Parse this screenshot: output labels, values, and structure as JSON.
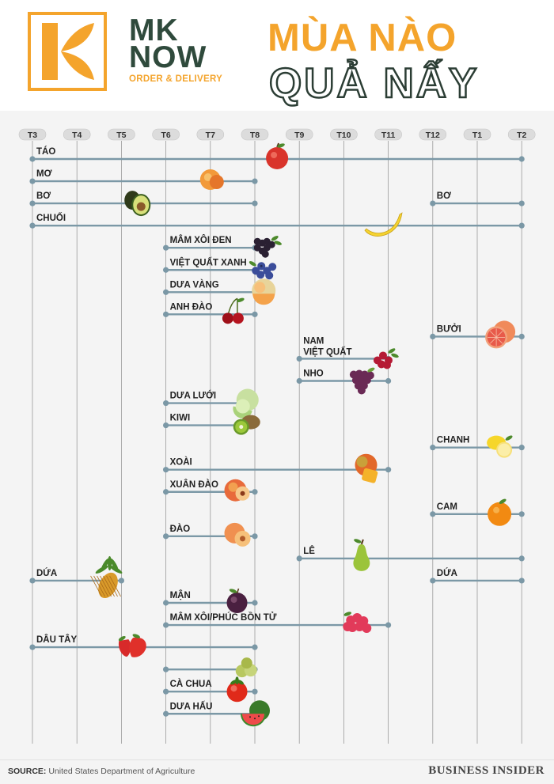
{
  "brand": {
    "name_line1": "MK",
    "name_line2": "NOW",
    "tagline": "ORDER & DELIVERY",
    "logo_letter": "K",
    "accent_color": "#f4a42c",
    "dark_color": "#2f4a3c"
  },
  "slogan": {
    "line1": "MÙA NÀO",
    "line2": "QUẢ NẤY"
  },
  "chart_data": {
    "type": "timeline",
    "xlabel": "",
    "months": [
      "T3",
      "T4",
      "T5",
      "T6",
      "T7",
      "T8",
      "T9",
      "T10",
      "T11",
      "T12",
      "T1",
      "T2"
    ],
    "line_color": "#7b98a6",
    "fruits": [
      {
        "label": "TÁO",
        "spans": [
          [
            0,
            11
          ]
        ],
        "icon": "apple-icon",
        "icon_at": 5.5
      },
      {
        "label": "MƠ",
        "spans": [
          [
            0,
            5
          ]
        ],
        "icon": "apricot-icon",
        "icon_at": 4
      },
      {
        "label": "BƠ",
        "spans": [
          [
            0,
            5
          ],
          [
            9,
            11
          ]
        ],
        "extra_labels": [
          {
            "text": "BƠ",
            "at": 9
          }
        ],
        "icon": "avocado-icon",
        "icon_at": 2.3
      },
      {
        "label": "CHUỐI",
        "spans": [
          [
            0,
            11
          ]
        ],
        "icon": "banana-icon",
        "icon_at": 7.9
      },
      {
        "label": "MÂM XÔI ĐEN",
        "spans": [
          [
            3,
            5
          ]
        ],
        "icon": "blackberry-icon",
        "icon_at": 5.2
      },
      {
        "label": "VIỆT QUẤT XANH",
        "spans": [
          [
            3,
            5
          ]
        ],
        "icon": "blueberry-icon",
        "icon_at": 5.2
      },
      {
        "label": "DƯA VÀNG",
        "spans": [
          [
            3,
            5
          ]
        ],
        "icon": "cantaloupe-icon",
        "icon_at": 5.2
      },
      {
        "label": "ANH ĐÀO",
        "spans": [
          [
            3,
            5
          ]
        ],
        "icon": "cherry-icon",
        "icon_at": 4.5
      },
      {
        "label": "BƯỞI",
        "spans": [
          [
            9,
            11
          ]
        ],
        "icon": "grapefruit-icon",
        "icon_at": 10.5
      },
      {
        "label": "NAM",
        "label2": "VIỆT QUẤT",
        "spans": [
          [
            6,
            8
          ]
        ],
        "icon": "cranberry-icon",
        "icon_at": 7.9
      },
      {
        "label": "NHO",
        "spans": [
          [
            6,
            8
          ]
        ],
        "icon": "grape-icon",
        "icon_at": 7.4
      },
      {
        "label": "DƯA LƯỚI",
        "spans": [
          [
            3,
            5
          ]
        ],
        "icon": "honeydew-icon",
        "icon_at": 4.8
      },
      {
        "label": "KIWI",
        "spans": [
          [
            3,
            5
          ]
        ],
        "icon": "kiwi-icon",
        "icon_at": 4.8
      },
      {
        "label": "CHANH",
        "spans": [
          [
            9,
            11
          ]
        ],
        "icon": "lemon-icon",
        "icon_at": 10.5
      },
      {
        "label": "XOÀI",
        "spans": [
          [
            3,
            8
          ]
        ],
        "icon": "mango-icon",
        "icon_at": 7.5
      },
      {
        "label": "XUÂN ĐÀO",
        "spans": [
          [
            3,
            5
          ]
        ],
        "icon": "nectarine-icon",
        "icon_at": 4.6
      },
      {
        "label": "CAM",
        "spans": [
          [
            9,
            11
          ]
        ],
        "icon": "orange-icon",
        "icon_at": 10.5
      },
      {
        "label": "ĐÀO",
        "spans": [
          [
            3,
            5
          ]
        ],
        "icon": "peach-icon",
        "icon_at": 4.6
      },
      {
        "label": "LÊ",
        "spans": [
          [
            6,
            11
          ]
        ],
        "icon": "pear-icon",
        "icon_at": 7.4
      },
      {
        "label": "DỨA",
        "spans": [
          [
            0,
            2
          ],
          [
            9,
            11
          ]
        ],
        "extra_labels": [
          {
            "text": "DỨA",
            "at": 9
          }
        ],
        "icon": "pineapple-icon",
        "icon_at": 1.7
      },
      {
        "label": "MẬN",
        "spans": [
          [
            3,
            5
          ]
        ],
        "icon": "plum-icon",
        "icon_at": 4.6
      },
      {
        "label": "MÂM XÔI/PHÚC BỒN TỬ",
        "spans": [
          [
            3,
            8
          ]
        ],
        "icon": "raspberry-icon",
        "icon_at": 7.3
      },
      {
        "label": "DÂU TÂY",
        "spans": [
          [
            0,
            5
          ]
        ],
        "icon": "strawberry-icon",
        "icon_at": 2.3
      },
      {
        "label": "",
        "spans": [
          [
            3,
            5
          ]
        ],
        "icon": "tomatillo-icon",
        "icon_at": 4.8
      },
      {
        "label": "CÀ CHUA",
        "spans": [
          [
            3,
            5
          ]
        ],
        "icon": "tomato-icon",
        "icon_at": 4.6
      },
      {
        "label": "DƯA HẤU",
        "spans": [
          [
            3,
            5
          ]
        ],
        "icon": "watermelon-icon",
        "icon_at": 5.0
      }
    ]
  },
  "footer": {
    "source_label": "SOURCE:",
    "source_text": "United States Department of Agriculture",
    "publisher": "BUSINESS INSIDER"
  }
}
